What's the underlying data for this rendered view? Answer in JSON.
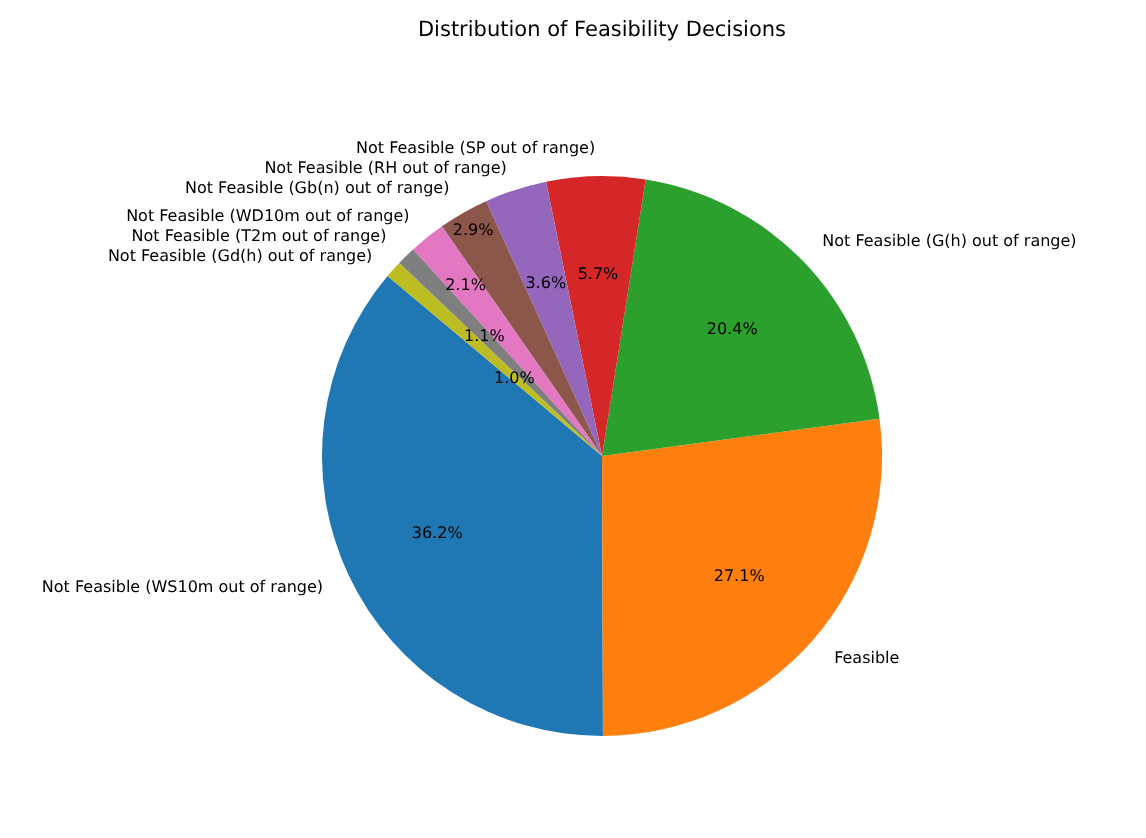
{
  "chart_data": {
    "type": "pie",
    "title": "Distribution of Feasibility Decisions",
    "categories": [
      "Not Feasible (WS10m out of range)",
      "Feasible",
      "Not Feasible (G(h) out of range)",
      "Not Feasible (SP out of range)",
      "Not Feasible (RH out of range)",
      "Not Feasible (Gb(n) out of range)",
      "Not Feasible (WD10m out of range)",
      "Not Feasible (T2m out of range)",
      "Not Feasible (Gd(h) out of range)"
    ],
    "values": [
      36.2,
      27.1,
      20.4,
      5.7,
      3.6,
      2.9,
      2.1,
      1.1,
      1.0
    ],
    "value_labels": [
      "36.2%",
      "27.1%",
      "20.4%",
      "5.7%",
      "3.6%",
      "2.9%",
      "2.1%",
      "1.1%",
      "1.0%"
    ],
    "colors": [
      "#1f77b4",
      "#ff7f0e",
      "#2ca02c",
      "#d62728",
      "#9467bd",
      "#8c564b",
      "#e377c2",
      "#7f7f7f",
      "#bcbd22"
    ]
  }
}
